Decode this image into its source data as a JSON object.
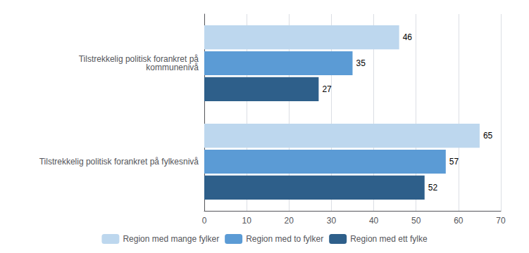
{
  "chart_data": {
    "type": "bar",
    "orientation": "horizontal",
    "categories": [
      "Tilstrekkelig politisk forankret på\nkommunenivå",
      "Tilstrekkelig politisk forankret på fylkesnivå"
    ],
    "series": [
      {
        "name": "Region med mange fylker",
        "values": [
          46,
          65
        ],
        "color": "#bdd7ee"
      },
      {
        "name": "Region med to fylker",
        "values": [
          35,
          57
        ],
        "color": "#5b9bd5"
      },
      {
        "name": "Region med ett fylke",
        "values": [
          27,
          52
        ],
        "color": "#2e5f8a"
      }
    ],
    "xlim": [
      0,
      70
    ],
    "xticks": [
      0,
      10,
      20,
      30,
      40,
      50,
      60,
      70
    ],
    "grid": true,
    "legend": "bottom",
    "data_labels": true
  }
}
